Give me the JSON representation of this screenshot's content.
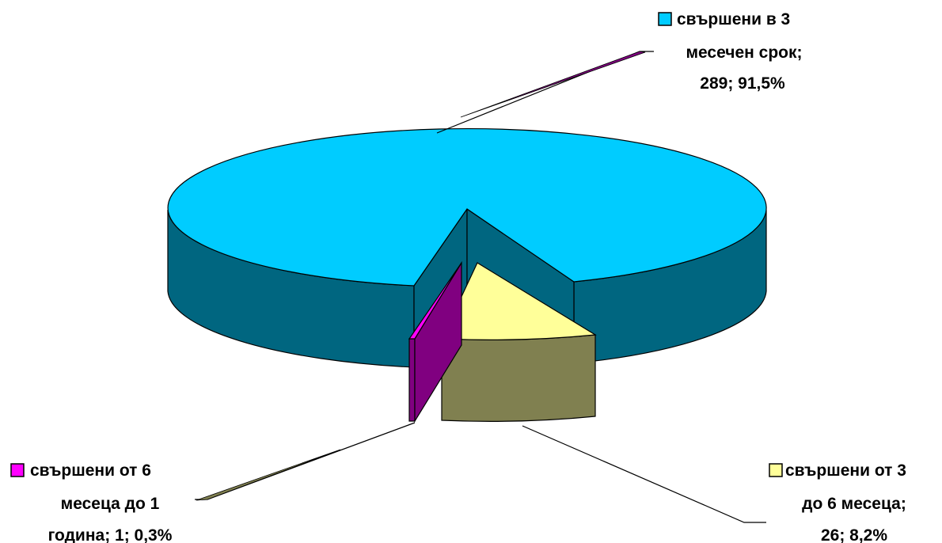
{
  "chart_data": {
    "type": "pie",
    "slices": [
      {
        "category": "свършени в 3 месечен срок",
        "count": 289,
        "percent": "91,5%",
        "color": "#00CCFF",
        "side_color": "#006680",
        "label_lines": [
          "свършени в 3",
          "месечен срок;",
          "289; 91,5%"
        ]
      },
      {
        "category": "свършени от 3 до 6 месеца",
        "count": 26,
        "percent": "8,2%",
        "color": "#FFFF99",
        "side_color": "#808050",
        "label_lines": [
          "свършени от 3",
          "до 6 месеца;",
          "26; 8,2%"
        ]
      },
      {
        "category": "свършени от 6 месеца до 1 година",
        "count": 1,
        "percent": "0,3%",
        "color": "#FF00FF",
        "side_color": "#800080",
        "label_lines": [
          "свършени от 6",
          "месеца до 1",
          "година; 1; 0,3%"
        ]
      }
    ],
    "style": "3d-exploded-pie",
    "legend": "inline-labels-with-color-keys"
  }
}
